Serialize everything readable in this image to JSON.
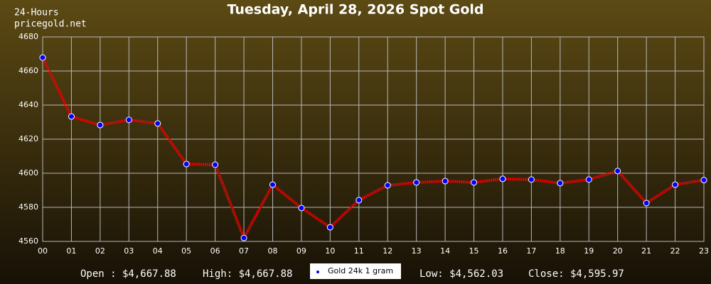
{
  "chart_data": {
    "type": "line",
    "title": "Tuesday, April 28, 2026 Spot Gold",
    "corner_lines": [
      "24-Hours",
      "pricegold.net"
    ],
    "categories": [
      "00",
      "01",
      "02",
      "03",
      "04",
      "05",
      "06",
      "07",
      "08",
      "09",
      "10",
      "11",
      "12",
      "13",
      "14",
      "15",
      "16",
      "17",
      "18",
      "19",
      "20",
      "21",
      "22",
      "23"
    ],
    "series": [
      {
        "name": "Gold 24k 1 gram",
        "color": "#ee0000",
        "marker_color": "#0000ff",
        "values": [
          4667.88,
          4633.3,
          4628.3,
          4631.3,
          4629.2,
          4605.4,
          4605.0,
          4562.03,
          4593.3,
          4579.6,
          4568.3,
          4584.2,
          4592.9,
          4594.6,
          4595.4,
          4594.6,
          4596.7,
          4596.3,
          4594.2,
          4596.3,
          4601.3,
          4582.5,
          4593.3,
          4595.97
        ]
      }
    ],
    "ylim": [
      4560,
      4680
    ],
    "yticks": [
      4560,
      4580,
      4600,
      4620,
      4640,
      4660,
      4680
    ],
    "grid": true,
    "stats": [
      "Open : $4,667.88",
      "High: $4,667.88",
      "Low: $4,562.03",
      "Close: $4,595.97"
    ]
  }
}
